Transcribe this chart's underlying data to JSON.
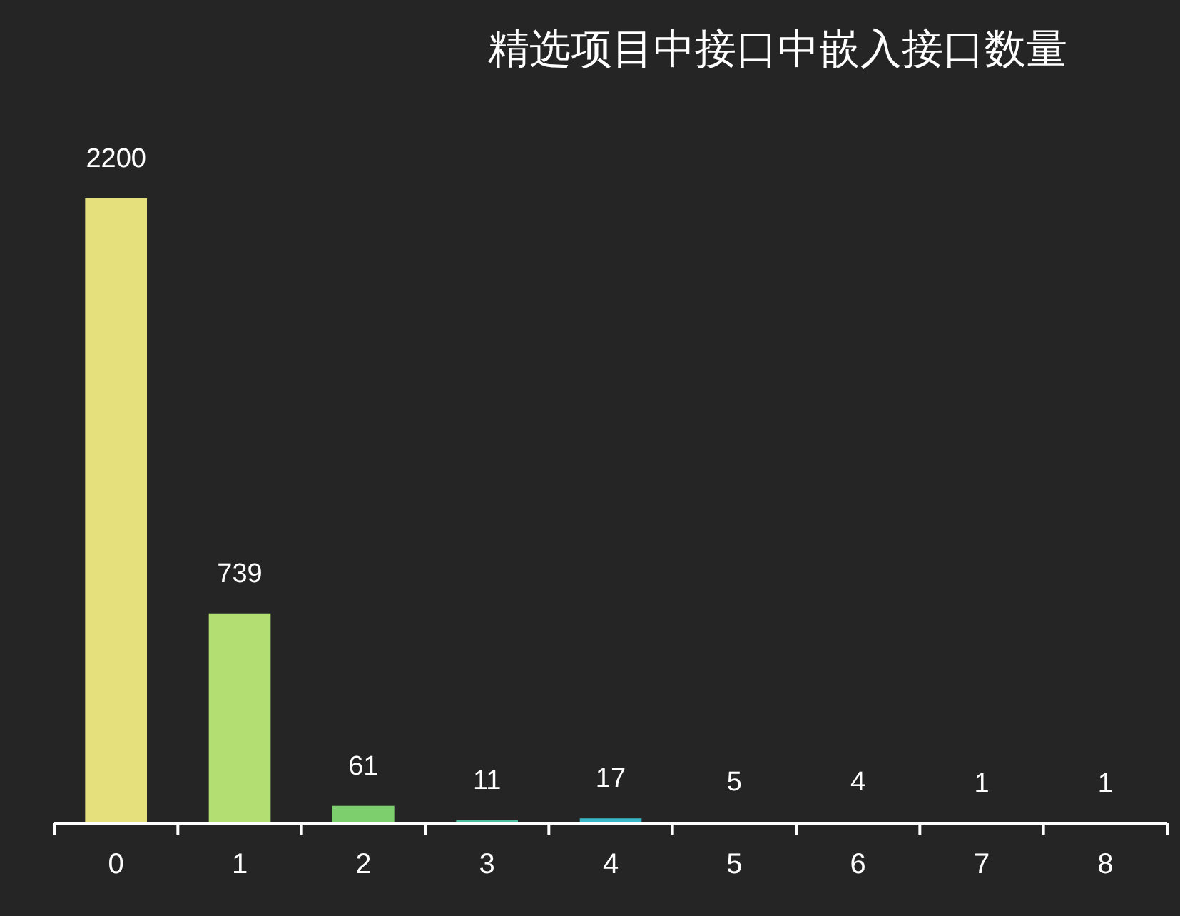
{
  "chart_data": {
    "type": "bar",
    "title": "精选项目中接口中嵌入接口数量",
    "categories": [
      "0",
      "1",
      "2",
      "3",
      "4",
      "5",
      "6",
      "7",
      "8"
    ],
    "values": [
      2200,
      739,
      61,
      11,
      17,
      5,
      4,
      1,
      1
    ],
    "colors": [
      "#e6e07c",
      "#b3df72",
      "#7ccf6c",
      "#4cbfa0",
      "#3ab8c8",
      "#b4b2d8",
      "#b8b0d0",
      "#a8b0d8",
      "#a8b8e0"
    ],
    "data_labels": true
  }
}
